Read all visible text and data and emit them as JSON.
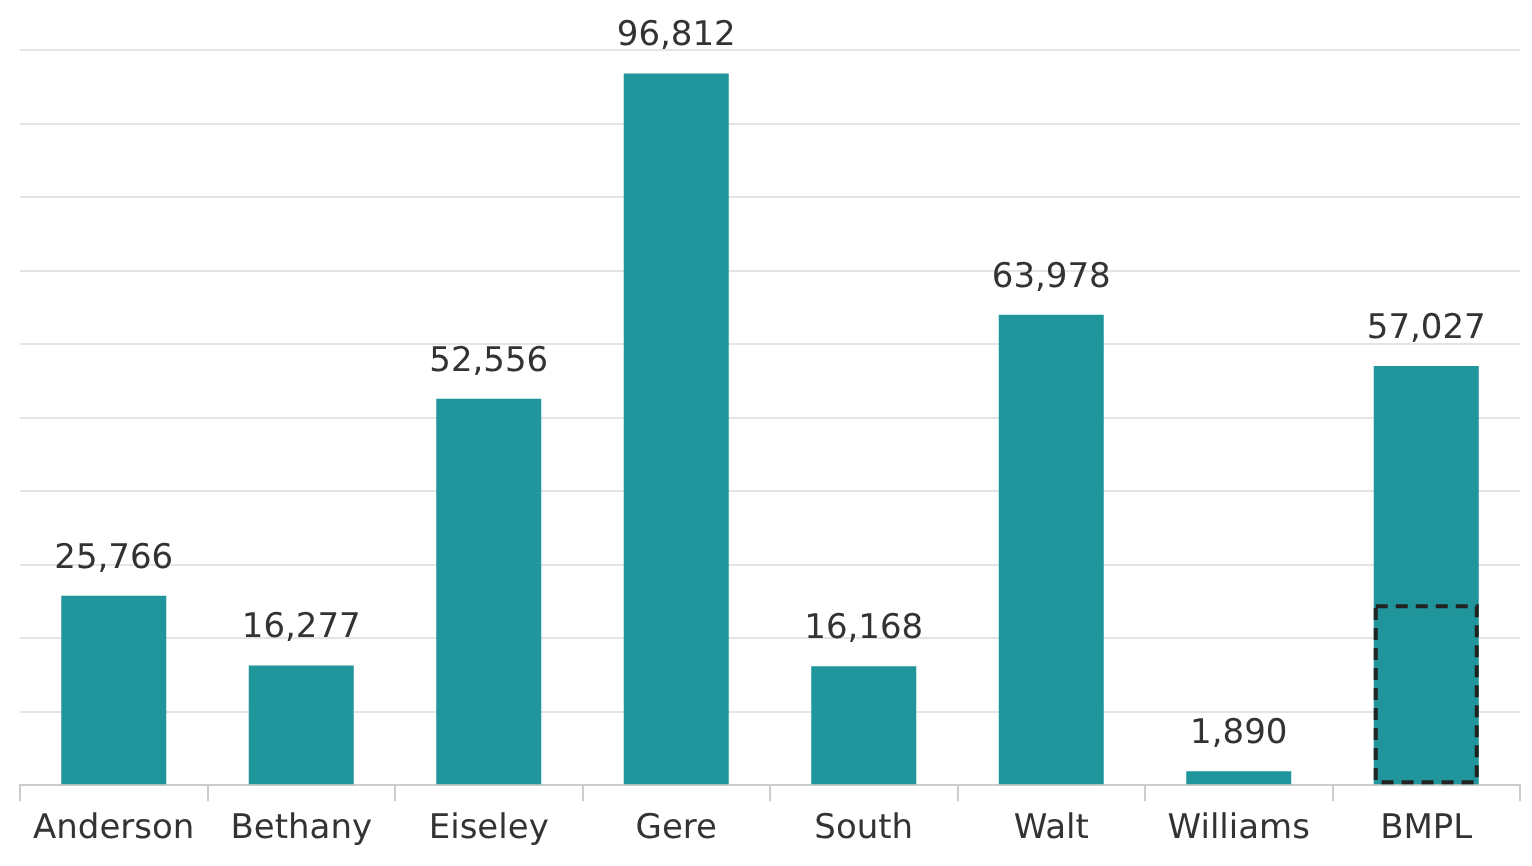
{
  "chart_data": {
    "type": "bar",
    "categories": [
      "Anderson",
      "Bethany",
      "Eiseley",
      "Gere",
      "South",
      "Walt",
      "Williams",
      "BMPL"
    ],
    "series": [
      {
        "color": "#21959c",
        "values": [
          25766,
          16277,
          52556,
          96812,
          16168,
          63978,
          1890,
          57027
        ],
        "value_labels": [
          "25,766",
          "16,277",
          "52,556",
          "96,812",
          "16,168",
          "63,978",
          "1,890",
          "57,027"
        ]
      },
      {
        "color": "#222222",
        "line_style": "dashed",
        "values": [
          null,
          null,
          null,
          null,
          null,
          null,
          null,
          24600
        ]
      }
    ],
    "grid": "y",
    "tick_labels": "x"
  }
}
